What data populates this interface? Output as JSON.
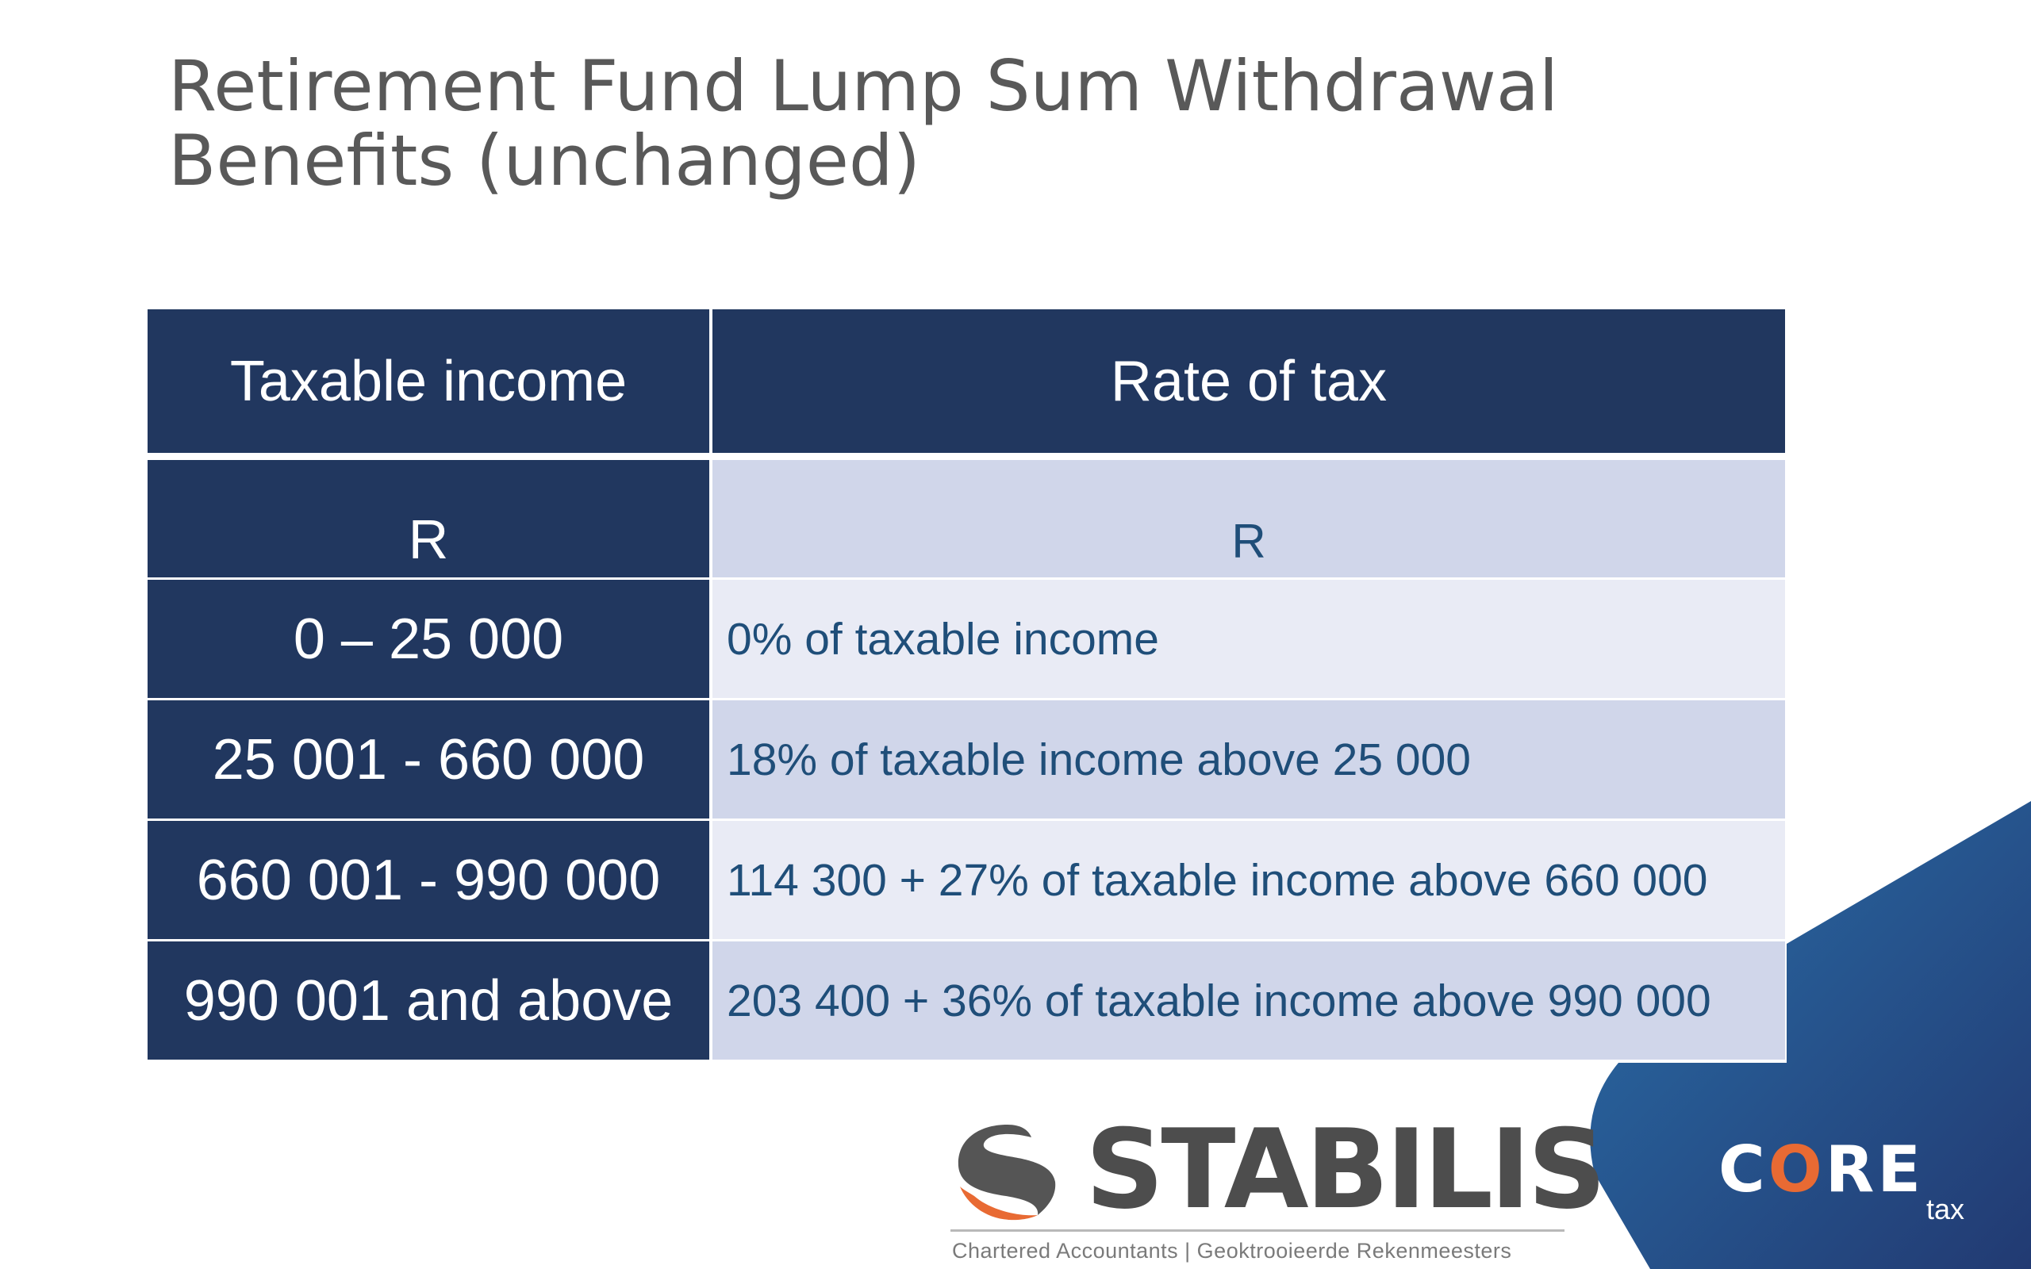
{
  "title": {
    "line1": "Retirement Fund Lump Sum Withdrawal",
    "line2": "Benefits (unchanged)"
  },
  "table": {
    "headers": {
      "taxable_income": "Taxable income",
      "rate_of_tax": "Rate of tax"
    },
    "units": {
      "left": "R",
      "right": "R"
    },
    "rows": [
      {
        "income": "0 – 25 000",
        "rate": "0% of taxable income"
      },
      {
        "income": "25 001 - 660 000",
        "rate": "18% of taxable income above 25 000"
      },
      {
        "income": "660 001 - 990 000",
        "rate": "114 300 + 27% of taxable income above 660 000"
      },
      {
        "income": "990 001 and above",
        "rate": "203 400 + 36% of taxable income above 990 000"
      }
    ]
  },
  "branding": {
    "stabilis_name": "STABILIS",
    "stabilis_tagline": "Chartered Accountants | Geoktrooieerde Rekenmeesters",
    "core_c": "C",
    "core_o": "O",
    "core_re": "RE",
    "core_sub": "tax",
    "stabilis_mark_icon": "stabilis-swirl-icon",
    "colors": {
      "navy": "#21375f",
      "light_row": "#e9ebf5",
      "dark_row": "#d0d6ea",
      "accent_orange": "#e86a33",
      "corner_blue": "#2f5a9a"
    }
  }
}
